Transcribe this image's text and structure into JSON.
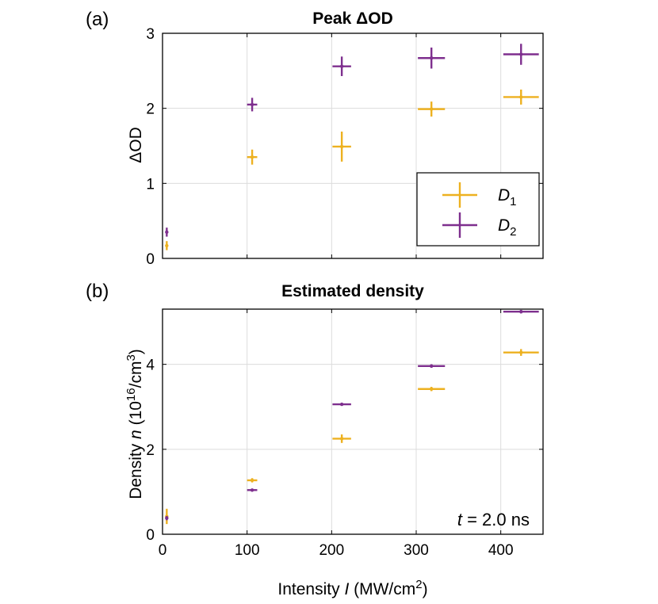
{
  "panels": {
    "a": {
      "label": "(a)",
      "title": "Peak ",
      "title_delta": "Δ",
      "title_rest": "OD"
    },
    "b": {
      "label": "(b)",
      "title": "Estimated density"
    }
  },
  "axes": {
    "a_ylabel_delta": "Δ",
    "a_ylabel_rest": "OD",
    "b_ylabel_pre": "Density ",
    "b_ylabel_var": "n",
    "b_ylabel_mid": " (10",
    "b_ylabel_exp": "16",
    "b_ylabel_post": "/cm",
    "b_ylabel_exp2": "3",
    "b_ylabel_end": ")",
    "xlabel_pre": "Intensity ",
    "xlabel_var": "I",
    "xlabel_mid": " (MW/cm",
    "xlabel_exp": "2",
    "xlabel_end": ")"
  },
  "legend": {
    "d1_base": "D",
    "d1_sub": "1",
    "d2_base": "D",
    "d2_sub": "2"
  },
  "annotation": {
    "var": "t",
    "rest": " = 2.0 ns"
  },
  "colors": {
    "D1": "#EDB120",
    "D2": "#7E2F8E"
  },
  "chart_data": [
    {
      "type": "scatter",
      "title": "Peak ΔOD",
      "xlabel": "",
      "ylabel": "ΔOD",
      "xlim": [
        0,
        450
      ],
      "ylim": [
        0,
        3
      ],
      "xticks": [
        0,
        100,
        200,
        300,
        400
      ],
      "yticks": [
        0,
        1,
        2,
        3
      ],
      "grid": true,
      "legend_position": "bottom-right",
      "series": [
        {
          "name": "D1",
          "x": [
            5,
            106,
            212,
            318,
            424
          ],
          "y": [
            0.17,
            1.35,
            1.49,
            1.99,
            2.15
          ],
          "xerr": [
            1,
            6,
            11,
            16,
            21
          ],
          "yerr": [
            0.06,
            0.1,
            0.2,
            0.1,
            0.1
          ]
        },
        {
          "name": "D2",
          "x": [
            5,
            106,
            212,
            318,
            424
          ],
          "y": [
            0.35,
            2.05,
            2.56,
            2.67,
            2.72
          ],
          "xerr": [
            1,
            6,
            11,
            16,
            21
          ],
          "yerr": [
            0.06,
            0.09,
            0.13,
            0.14,
            0.14
          ]
        }
      ]
    },
    {
      "type": "scatter",
      "title": "Estimated density",
      "xlabel": "Intensity I (MW/cm2)",
      "ylabel": "Density n (10^16/cm^3)",
      "xlim": [
        0,
        450
      ],
      "ylim": [
        0,
        5.3
      ],
      "xticks": [
        0,
        100,
        200,
        300,
        400
      ],
      "yticks": [
        0,
        2,
        4
      ],
      "grid": true,
      "annotation": "t = 2.0 ns",
      "series": [
        {
          "name": "D1",
          "x": [
            5,
            106,
            212,
            318,
            424
          ],
          "y": [
            0.42,
            1.27,
            2.25,
            3.42,
            4.28
          ],
          "xerr": [
            1,
            6,
            11,
            16,
            21
          ],
          "yerr": [
            0.18,
            0.05,
            0.1,
            0.05,
            0.08
          ]
        },
        {
          "name": "D2",
          "x": [
            5,
            106,
            212,
            318,
            424
          ],
          "y": [
            0.38,
            1.04,
            3.06,
            3.96,
            5.24
          ],
          "xerr": [
            1,
            6,
            11,
            16,
            21
          ],
          "yerr": [
            0.05,
            0.03,
            0.03,
            0.04,
            0.04
          ]
        }
      ]
    }
  ]
}
